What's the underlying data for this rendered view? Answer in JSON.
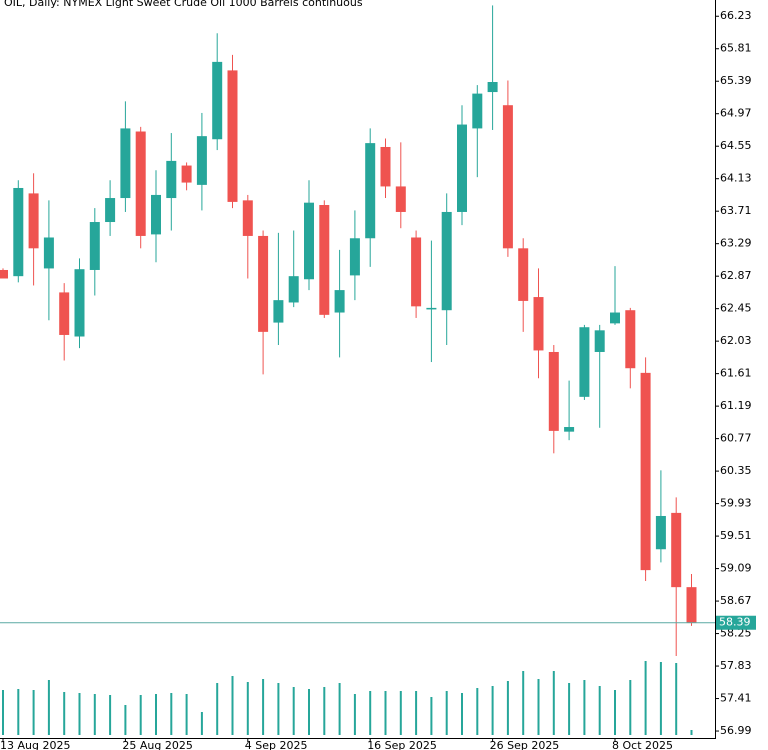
{
  "chart_data": {
    "type": "candlestick",
    "title": "OIL, Daily:  NYMEX Light Sweet Crude Oil 1000 Barrels continuous",
    "categories": [
      "13 Aug 2025",
      null,
      null,
      null,
      null,
      null,
      null,
      null,
      "25 Aug 2025",
      null,
      null,
      null,
      null,
      null,
      null,
      null,
      "4 Sep 2025",
      null,
      null,
      null,
      null,
      null,
      null,
      null,
      "16 Sep 2025",
      null,
      null,
      null,
      null,
      null,
      null,
      null,
      "26 Sep 2025",
      null,
      null,
      null,
      null,
      null,
      null,
      null,
      "8 Oct 2025",
      null,
      null,
      null,
      null,
      null
    ],
    "open": [
      62.95,
      62.87,
      63.94,
      62.97,
      62.66,
      62.09,
      62.95,
      63.57,
      63.88,
      64.74,
      63.41,
      63.88,
      64.3,
      64.05,
      64.64,
      65.53,
      63.85,
      63.39,
      62.27,
      62.53,
      62.83,
      63.79,
      62.4,
      62.88,
      63.36,
      64.54,
      64.03,
      63.37,
      62.44,
      62.43,
      63.7,
      64.78,
      65.25,
      65.08,
      63.23,
      62.6,
      61.89,
      60.86,
      61.31,
      61.89,
      62.26,
      62.43,
      61.62,
      59.34,
      59.81,
      58.85
    ],
    "high": [
      62.97,
      64.11,
      64.2,
      63.85,
      62.78,
      63.1,
      63.75,
      64.11,
      65.13,
      64.8,
      64.24,
      64.72,
      64.34,
      64.98,
      66.01,
      65.73,
      63.92,
      63.46,
      63.43,
      63.46,
      64.11,
      63.85,
      63.21,
      63.72,
      64.78,
      64.65,
      64.6,
      63.46,
      63.33,
      63.94,
      65.08,
      65.34,
      66.37,
      65.4,
      63.36,
      62.97,
      61.98,
      61.52,
      62.24,
      62.24,
      63.0,
      62.46,
      61.82,
      60.36,
      60.01,
      59.02
    ],
    "low": [
      62.84,
      62.79,
      62.75,
      62.3,
      61.78,
      61.94,
      62.62,
      63.39,
      63.7,
      63.23,
      63.05,
      63.46,
      63.98,
      63.72,
      64.5,
      63.75,
      62.84,
      61.6,
      61.98,
      62.47,
      62.69,
      62.33,
      61.82,
      62.56,
      62.99,
      63.88,
      63.49,
      62.33,
      61.76,
      61.98,
      63.53,
      64.15,
      64.76,
      63.12,
      62.15,
      61.55,
      60.58,
      60.75,
      61.27,
      60.91,
      62.24,
      61.42,
      58.93,
      59.17,
      57.96,
      58.35
    ],
    "close": [
      62.84,
      64.01,
      63.23,
      63.37,
      62.11,
      62.96,
      63.57,
      63.88,
      64.78,
      63.39,
      63.92,
      64.36,
      64.08,
      64.68,
      65.64,
      63.83,
      63.39,
      62.15,
      62.56,
      62.87,
      63.82,
      62.37,
      62.69,
      63.36,
      64.59,
      64.03,
      63.7,
      62.48,
      62.46,
      63.7,
      64.83,
      65.23,
      65.38,
      63.23,
      62.55,
      61.91,
      60.87,
      60.92,
      62.21,
      62.17,
      62.4,
      61.68,
      59.07,
      59.77,
      58.85,
      58.39
    ],
    "volumes": [
      45,
      46,
      45,
      55,
      43,
      42,
      41,
      40,
      30,
      40,
      41,
      42,
      41,
      23,
      52,
      59,
      53,
      56,
      52,
      48,
      46,
      48,
      52,
      41,
      44,
      44,
      44,
      44,
      38,
      44,
      42,
      47,
      49,
      54,
      64,
      56,
      64,
      52,
      55,
      49,
      45,
      55,
      74,
      73,
      72,
      5
    ],
    "up_color": "#26a69a",
    "down_color": "#ef5350",
    "volume_color": "#26a69a",
    "ylim": [
      56.9,
      66.44
    ],
    "yticks": [
      66.23,
      65.81,
      65.39,
      64.97,
      64.55,
      64.13,
      63.71,
      63.29,
      62.87,
      62.45,
      62.03,
      61.61,
      61.19,
      60.77,
      60.35,
      59.93,
      59.51,
      59.09,
      58.67,
      58.25,
      57.83,
      57.41,
      56.99
    ]
  }
}
